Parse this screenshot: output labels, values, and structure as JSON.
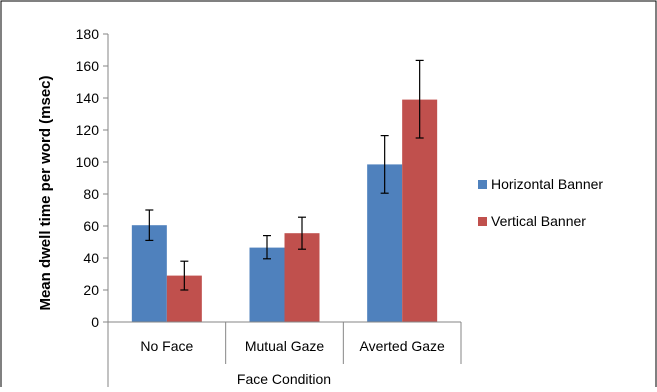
{
  "chart_data": {
    "type": "bar",
    "title": "",
    "xlabel": "Face Condition",
    "ylabel": "Mean  dwell  time per word (msec)",
    "ylim": [
      0,
      180
    ],
    "yticks": [
      0,
      20,
      40,
      60,
      80,
      100,
      120,
      140,
      160,
      180
    ],
    "grid": false,
    "legend_position": "right",
    "categories": [
      "No Face",
      "Mutual Gaze",
      "Averted Gaze"
    ],
    "series": [
      {
        "name": "Horizontal Banner",
        "color": "#4F81BD",
        "values": [
          60.5,
          46.5,
          98.5
        ],
        "error": [
          [
            51,
            70
          ],
          [
            39.5,
            54
          ],
          [
            80.5,
            116.5
          ]
        ]
      },
      {
        "name": "Vertical Banner",
        "color": "#C0504D",
        "values": [
          29,
          55.5,
          139
        ],
        "error": [
          [
            20,
            38
          ],
          [
            45.5,
            65.5
          ],
          [
            115,
            163.5
          ]
        ]
      }
    ]
  }
}
